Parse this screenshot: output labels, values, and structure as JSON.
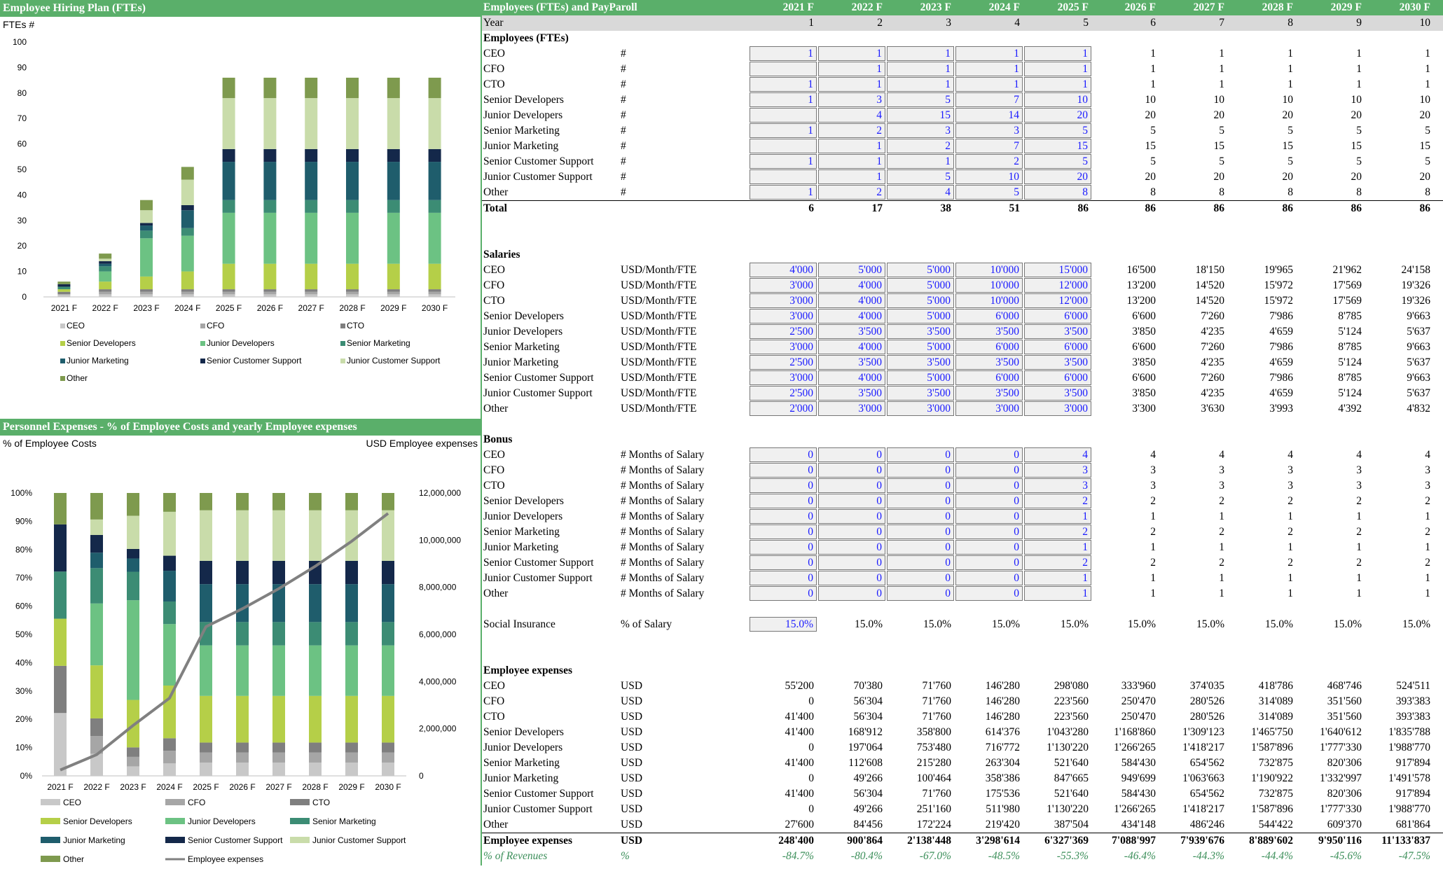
{
  "title_fte": "Employee Hiring Plan (FTEs)",
  "title_pers": "Personnel Expenses - % of Employee Costs and yearly Employee expenses",
  "title_table": "Employees (FTEs) and PayParoll",
  "chart1_ylabel": "FTEs #",
  "chart2_ylabel_left": "% of Employee Costs",
  "chart2_ylabel_right": "USD Employee expenses",
  "years": [
    "2021 F",
    "2022 F",
    "2023 F",
    "2024 F",
    "2025 F",
    "2026 F",
    "2027 F",
    "2028 F",
    "2029 F",
    "2030 F"
  ],
  "year_idx": [
    "1",
    "2",
    "3",
    "4",
    "5",
    "6",
    "7",
    "8",
    "9",
    "10"
  ],
  "year_label": "Year",
  "roles": [
    "CEO",
    "CFO",
    "CTO",
    "Senior Developers",
    "Junior Developers",
    "Senior Marketing",
    "Junior Marketing",
    "Senior Customer Support",
    "Junior Customer Support",
    "Other"
  ],
  "colors": {
    "CEO": "#c8c8c8",
    "CFO": "#a6a6a6",
    "CTO": "#7f7f7f",
    "Senior Developers": "#b5cf48",
    "Junior Developers": "#6cc283",
    "Senior Marketing": "#3c8c74",
    "Junior Marketing": "#1f5d6c",
    "Senior Customer Support": "#14284a",
    "Junior Customer Support": "#c9dcaa",
    "Other": "#7e9a4e",
    "line": "#808080"
  },
  "chart_data": [
    {
      "type": "bar",
      "stacked": true,
      "ylabel": "FTEs #",
      "ylim": [
        0,
        100
      ],
      "yticks": [
        0,
        10,
        20,
        30,
        40,
        50,
        60,
        70,
        80,
        90,
        100
      ],
      "categories": [
        "2021 F",
        "2022 F",
        "2023 F",
        "2024 F",
        "2025 F",
        "2026 F",
        "2027 F",
        "2028 F",
        "2029 F",
        "2030 F"
      ],
      "series": [
        {
          "name": "CEO",
          "values": [
            1,
            1,
            1,
            1,
            1,
            1,
            1,
            1,
            1,
            1
          ]
        },
        {
          "name": "CFO",
          "values": [
            0,
            1,
            1,
            1,
            1,
            1,
            1,
            1,
            1,
            1
          ]
        },
        {
          "name": "CTO",
          "values": [
            1,
            1,
            1,
            1,
            1,
            1,
            1,
            1,
            1,
            1
          ]
        },
        {
          "name": "Senior Developers",
          "values": [
            1,
            3,
            5,
            7,
            10,
            10,
            10,
            10,
            10,
            10
          ]
        },
        {
          "name": "Junior Developers",
          "values": [
            0,
            4,
            15,
            14,
            20,
            20,
            20,
            20,
            20,
            20
          ]
        },
        {
          "name": "Senior Marketing",
          "values": [
            1,
            2,
            3,
            3,
            5,
            5,
            5,
            5,
            5,
            5
          ]
        },
        {
          "name": "Junior Marketing",
          "values": [
            0,
            1,
            2,
            7,
            15,
            15,
            15,
            15,
            15,
            15
          ]
        },
        {
          "name": "Senior Customer Support",
          "values": [
            1,
            1,
            1,
            2,
            5,
            5,
            5,
            5,
            5,
            5
          ]
        },
        {
          "name": "Junior Customer Support",
          "values": [
            0,
            1,
            5,
            10,
            20,
            20,
            20,
            20,
            20,
            20
          ]
        },
        {
          "name": "Other",
          "values": [
            1,
            2,
            4,
            5,
            8,
            8,
            8,
            8,
            8,
            8
          ]
        }
      ],
      "legend": "bottom"
    },
    {
      "type": "bar",
      "stacked": true,
      "percent": true,
      "ylabel": "% of Employee Costs",
      "y2label": "USD Employee expenses",
      "yticks": [
        "0%",
        "10%",
        "20%",
        "30%",
        "40%",
        "50%",
        "60%",
        "70%",
        "80%",
        "90%",
        "100%"
      ],
      "y2ticks": [
        "0",
        "2,000,000",
        "4,000,000",
        "6,000,000",
        "8,000,000",
        "10,000,000",
        "12,000,000"
      ],
      "y2lim": [
        0,
        12000000
      ],
      "categories": [
        "2021 F",
        "2022 F",
        "2023 F",
        "2024 F",
        "2025 F",
        "2026 F",
        "2027 F",
        "2028 F",
        "2029 F",
        "2030 F"
      ],
      "line": {
        "name": "Employee expenses",
        "values": [
          248400,
          900864,
          2138448,
          3298614,
          6327369,
          7088997,
          7939676,
          8889602,
          9950116,
          11133837
        ]
      },
      "legend": "bottom"
    }
  ],
  "sections": {
    "fte": "Employees (FTEs)",
    "salaries": "Salaries",
    "bonus": "Bonus",
    "expenses": "Employee expenses"
  },
  "units": {
    "fte": "#",
    "sal": "USD/Month/FTE",
    "bonus": "# Months of Salary",
    "si": "% of Salary",
    "usd": "USD",
    "pct": "%"
  },
  "fte": [
    [
      "1",
      "1",
      "1",
      "1",
      "1",
      "1",
      "1",
      "1",
      "1",
      "1"
    ],
    [
      "",
      "1",
      "1",
      "1",
      "1",
      "1",
      "1",
      "1",
      "1",
      "1"
    ],
    [
      "1",
      "1",
      "1",
      "1",
      "1",
      "1",
      "1",
      "1",
      "1",
      "1"
    ],
    [
      "1",
      "3",
      "5",
      "7",
      "10",
      "10",
      "10",
      "10",
      "10",
      "10"
    ],
    [
      "",
      "4",
      "15",
      "14",
      "20",
      "20",
      "20",
      "20",
      "20",
      "20"
    ],
    [
      "1",
      "2",
      "3",
      "3",
      "5",
      "5",
      "5",
      "5",
      "5",
      "5"
    ],
    [
      "",
      "1",
      "2",
      "7",
      "15",
      "15",
      "15",
      "15",
      "15",
      "15"
    ],
    [
      "1",
      "1",
      "1",
      "2",
      "5",
      "5",
      "5",
      "5",
      "5",
      "5"
    ],
    [
      "",
      "1",
      "5",
      "10",
      "20",
      "20",
      "20",
      "20",
      "20",
      "20"
    ],
    [
      "1",
      "2",
      "4",
      "5",
      "8",
      "8",
      "8",
      "8",
      "8",
      "8"
    ]
  ],
  "fte_total_label": "Total",
  "fte_total": [
    "6",
    "17",
    "38",
    "51",
    "86",
    "86",
    "86",
    "86",
    "86",
    "86"
  ],
  "salaries": [
    [
      "4'000",
      "5'000",
      "5'000",
      "10'000",
      "15'000",
      "16'500",
      "18'150",
      "19'965",
      "21'962",
      "24'158"
    ],
    [
      "3'000",
      "4'000",
      "5'000",
      "10'000",
      "12'000",
      "13'200",
      "14'520",
      "15'972",
      "17'569",
      "19'326"
    ],
    [
      "3'000",
      "4'000",
      "5'000",
      "10'000",
      "12'000",
      "13'200",
      "14'520",
      "15'972",
      "17'569",
      "19'326"
    ],
    [
      "3'000",
      "4'000",
      "5'000",
      "6'000",
      "6'000",
      "6'600",
      "7'260",
      "7'986",
      "8'785",
      "9'663"
    ],
    [
      "2'500",
      "3'500",
      "3'500",
      "3'500",
      "3'500",
      "3'850",
      "4'235",
      "4'659",
      "5'124",
      "5'637"
    ],
    [
      "3'000",
      "4'000",
      "5'000",
      "6'000",
      "6'000",
      "6'600",
      "7'260",
      "7'986",
      "8'785",
      "9'663"
    ],
    [
      "2'500",
      "3'500",
      "3'500",
      "3'500",
      "3'500",
      "3'850",
      "4'235",
      "4'659",
      "5'124",
      "5'637"
    ],
    [
      "3'000",
      "4'000",
      "5'000",
      "6'000",
      "6'000",
      "6'600",
      "7'260",
      "7'986",
      "8'785",
      "9'663"
    ],
    [
      "2'500",
      "3'500",
      "3'500",
      "3'500",
      "3'500",
      "3'850",
      "4'235",
      "4'659",
      "5'124",
      "5'637"
    ],
    [
      "2'000",
      "3'000",
      "3'000",
      "3'000",
      "3'000",
      "3'300",
      "3'630",
      "3'993",
      "4'392",
      "4'832"
    ]
  ],
  "bonus": [
    [
      "0",
      "0",
      "0",
      "0",
      "4",
      "4",
      "4",
      "4",
      "4",
      "4"
    ],
    [
      "0",
      "0",
      "0",
      "0",
      "3",
      "3",
      "3",
      "3",
      "3",
      "3"
    ],
    [
      "0",
      "0",
      "0",
      "0",
      "3",
      "3",
      "3",
      "3",
      "3",
      "3"
    ],
    [
      "0",
      "0",
      "0",
      "0",
      "2",
      "2",
      "2",
      "2",
      "2",
      "2"
    ],
    [
      "0",
      "0",
      "0",
      "0",
      "1",
      "1",
      "1",
      "1",
      "1",
      "1"
    ],
    [
      "0",
      "0",
      "0",
      "0",
      "2",
      "2",
      "2",
      "2",
      "2",
      "2"
    ],
    [
      "0",
      "0",
      "0",
      "0",
      "1",
      "1",
      "1",
      "1",
      "1",
      "1"
    ],
    [
      "0",
      "0",
      "0",
      "0",
      "2",
      "2",
      "2",
      "2",
      "2",
      "2"
    ],
    [
      "0",
      "0",
      "0",
      "0",
      "1",
      "1",
      "1",
      "1",
      "1",
      "1"
    ],
    [
      "0",
      "0",
      "0",
      "0",
      "1",
      "1",
      "1",
      "1",
      "1",
      "1"
    ]
  ],
  "social_label": "Social Insurance",
  "social": [
    "15.0%",
    "15.0%",
    "15.0%",
    "15.0%",
    "15.0%",
    "15.0%",
    "15.0%",
    "15.0%",
    "15.0%",
    "15.0%"
  ],
  "expenses": [
    [
      "55'200",
      "70'380",
      "71'760",
      "146'280",
      "298'080",
      "333'960",
      "374'035",
      "418'786",
      "468'746",
      "524'511"
    ],
    [
      "0",
      "56'304",
      "71'760",
      "146'280",
      "223'560",
      "250'470",
      "280'526",
      "314'089",
      "351'560",
      "393'383"
    ],
    [
      "41'400",
      "56'304",
      "71'760",
      "146'280",
      "223'560",
      "250'470",
      "280'526",
      "314'089",
      "351'560",
      "393'383"
    ],
    [
      "41'400",
      "168'912",
      "358'800",
      "614'376",
      "1'043'280",
      "1'168'860",
      "1'309'123",
      "1'465'750",
      "1'640'612",
      "1'835'788"
    ],
    [
      "0",
      "197'064",
      "753'480",
      "716'772",
      "1'130'220",
      "1'266'265",
      "1'418'217",
      "1'587'896",
      "1'777'330",
      "1'988'770"
    ],
    [
      "41'400",
      "112'608",
      "215'280",
      "263'304",
      "521'640",
      "584'430",
      "654'562",
      "732'875",
      "820'306",
      "917'894"
    ],
    [
      "0",
      "49'266",
      "100'464",
      "358'386",
      "847'665",
      "949'699",
      "1'063'663",
      "1'190'922",
      "1'332'997",
      "1'491'578"
    ],
    [
      "41'400",
      "56'304",
      "71'760",
      "175'536",
      "521'640",
      "584'430",
      "654'562",
      "732'875",
      "820'306",
      "917'894"
    ],
    [
      "0",
      "49'266",
      "251'160",
      "511'980",
      "1'130'220",
      "1'266'265",
      "1'418'217",
      "1'587'896",
      "1'777'330",
      "1'988'770"
    ],
    [
      "27'600",
      "84'456",
      "172'224",
      "219'420",
      "387'504",
      "434'148",
      "486'246",
      "544'422",
      "609'370",
      "681'864"
    ]
  ],
  "exp_total_label": "Employee expenses",
  "exp_total": [
    "248'400",
    "900'864",
    "2'138'448",
    "3'298'614",
    "6'327'369",
    "7'088'997",
    "7'939'676",
    "8'889'602",
    "9'950'116",
    "11'133'837"
  ],
  "rev_label": "% of Revenues",
  "rev": [
    "-84.7%",
    "-80.4%",
    "-67.0%",
    "-48.5%",
    "-55.3%",
    "-46.4%",
    "-44.3%",
    "-44.4%",
    "-45.6%",
    "-47.5%"
  ]
}
